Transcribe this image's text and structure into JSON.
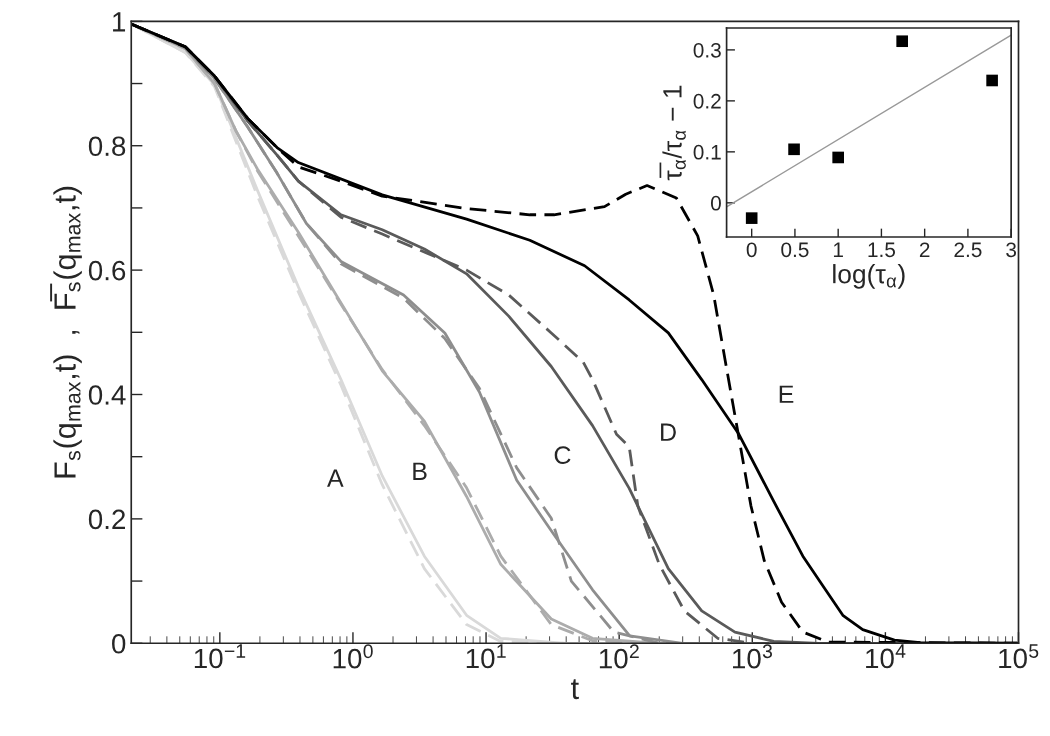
{
  "chart_data": [
    {
      "type": "line",
      "xlabel": "t",
      "ylabel": "F$_{s}$(q$_{max}$,t)  ,  F̅$_{s}$(q$_{max}$,t)",
      "log": "x",
      "xlim": [
        0.0216,
        100000
      ],
      "xticks": [
        {
          "value": 0.1,
          "label": "10$^{−1}$"
        },
        {
          "value": 1,
          "label": "10$^{0}$"
        },
        {
          "value": 10,
          "label": "10$^{1}$"
        },
        {
          "value": 100,
          "label": "10$^{2}$"
        },
        {
          "value": 1000,
          "label": "10$^{3}$"
        },
        {
          "value": 10000,
          "label": "10$^{4}$"
        },
        {
          "value": 100000,
          "label": "10$^{5}$"
        }
      ],
      "ylim": [
        0,
        1
      ],
      "yticks": [
        0,
        {
          "value": 0.1,
          "label": null
        },
        0.2,
        {
          "value": 0.3,
          "label": null
        },
        0.4,
        {
          "value": 0.5,
          "label": null
        },
        0.6,
        {
          "value": 0.7,
          "label": null
        },
        0.8,
        {
          "value": 0.9,
          "label": null
        },
        1
      ],
      "series": [
        {
          "color": "#d9d9d9",
          "line_style": "solid",
          "x": [
            0.022,
            0.055,
            0.0912,
            0.191,
            0.389,
            0.813,
            1.66,
            3.44,
            7.14,
            12.9,
            40,
            100000
          ],
          "values": [
            0.995,
            0.95,
            0.898,
            0.729,
            0.573,
            0.424,
            0.269,
            0.14,
            0.045,
            0.008,
            0,
            0
          ]
        },
        {
          "color": "#d9d9d9",
          "line_style": "dashed",
          "x": [
            0.022,
            0.055,
            0.0912,
            0.191,
            0.389,
            0.813,
            1.66,
            3.44,
            7.14,
            12.9,
            40,
            100000
          ],
          "values": [
            0.995,
            0.95,
            0.895,
            0.72,
            0.565,
            0.415,
            0.255,
            0.12,
            0.03,
            0.003,
            0,
            0
          ]
        },
        {
          "color": "#acacac",
          "line_style": "solid",
          "x": [
            0.022,
            0.055,
            0.0912,
            0.132,
            0.191,
            0.389,
            0.813,
            1.66,
            3.44,
            7.14,
            12.9,
            30.9,
            63.1,
            200,
            100000
          ],
          "values": [
            0.995,
            0.956,
            0.9,
            0.824,
            0.763,
            0.661,
            0.547,
            0.438,
            0.357,
            0.236,
            0.127,
            0.039,
            0.008,
            0,
            0
          ]
        },
        {
          "color": "#acacac",
          "line_style": "dashed",
          "x": [
            0.022,
            0.055,
            0.0912,
            0.132,
            0.191,
            0.389,
            0.813,
            1.66,
            3.44,
            7.14,
            12.9,
            30.9,
            63.1,
            200,
            100000
          ],
          "values": [
            0.995,
            0.956,
            0.9,
            0.824,
            0.76,
            0.655,
            0.545,
            0.44,
            0.35,
            0.25,
            0.14,
            0.03,
            0.004,
            0,
            0
          ]
        },
        {
          "color": "#8e8e8e",
          "line_style": "solid",
          "x": [
            0.022,
            0.055,
            0.0912,
            0.162,
            0.269,
            0.447,
            0.813,
            2.4,
            4.9,
            8.91,
            17,
            30.9,
            63.1,
            120,
            300,
            100000
          ],
          "values": [
            0.995,
            0.958,
            0.908,
            0.83,
            0.756,
            0.675,
            0.614,
            0.56,
            0.499,
            0.404,
            0.262,
            0.181,
            0.086,
            0.012,
            0,
            0
          ]
        },
        {
          "color": "#8e8e8e",
          "line_style": "dashed",
          "x": [
            0.022,
            0.055,
            0.0912,
            0.162,
            0.269,
            0.447,
            0.813,
            2.4,
            4.9,
            8.91,
            17,
            30.9,
            43.7,
            91.2,
            200,
            100000
          ],
          "values": [
            0.995,
            0.958,
            0.908,
            0.83,
            0.756,
            0.675,
            0.61,
            0.555,
            0.49,
            0.41,
            0.282,
            0.201,
            0.1,
            0.018,
            0,
            0
          ]
        },
        {
          "color": "#5a5a5a",
          "line_style": "solid",
          "x": [
            0.022,
            0.055,
            0.0912,
            0.162,
            0.269,
            0.389,
            0.813,
            1.66,
            3.44,
            7.14,
            14.8,
            30.9,
            63.1,
            119,
            234,
            417,
            741,
            1450,
            3160,
            100000
          ],
          "values": [
            0.995,
            0.959,
            0.912,
            0.84,
            0.785,
            0.743,
            0.689,
            0.665,
            0.634,
            0.594,
            0.526,
            0.445,
            0.35,
            0.249,
            0.12,
            0.052,
            0.018,
            0.003,
            0,
            0
          ]
        },
        {
          "color": "#5a5a5a",
          "line_style": "dashed",
          "x": [
            0.022,
            0.055,
            0.0912,
            0.162,
            0.269,
            0.389,
            0.813,
            1.66,
            7.14,
            14.8,
            30.9,
            53.7,
            63.1,
            95.5,
            119,
            138,
            200,
            309,
            550,
            1000,
            100000
          ],
          "values": [
            0.995,
            0.959,
            0.912,
            0.84,
            0.785,
            0.743,
            0.685,
            0.658,
            0.6,
            0.56,
            0.499,
            0.452,
            0.424,
            0.336,
            0.316,
            0.221,
            0.127,
            0.052,
            0.008,
            0,
            0
          ]
        },
        {
          "color": "#000000",
          "line_style": "solid",
          "x": [
            0.022,
            0.055,
            0.0912,
            0.162,
            0.269,
            0.389,
            1.66,
            7.14,
            21.3,
            55,
            119,
            234,
            417,
            794,
            1450,
            2400,
            3550,
            4790,
            6760,
            11700,
            18200,
            100000
          ],
          "values": [
            0.995,
            0.959,
            0.912,
            0.844,
            0.797,
            0.773,
            0.721,
            0.682,
            0.648,
            0.607,
            0.552,
            0.499,
            0.424,
            0.336,
            0.228,
            0.14,
            0.086,
            0.045,
            0.022,
            0.005,
            0.001,
            0
          ]
        },
        {
          "color": "#000000",
          "line_style": "dashed",
          "x": [
            0.022,
            0.055,
            0.0912,
            0.162,
            0.269,
            0.389,
            0.813,
            1.66,
            7.14,
            21.3,
            32.4,
            77.6,
            112,
            162,
            269,
            389,
            513,
            646,
            794,
            977,
            1230,
            1660,
            2400,
            3720,
            100000
          ],
          "values": [
            0.995,
            0.959,
            0.912,
            0.844,
            0.797,
            0.766,
            0.743,
            0.719,
            0.699,
            0.689,
            0.689,
            0.702,
            0.722,
            0.736,
            0.716,
            0.655,
            0.56,
            0.438,
            0.33,
            0.221,
            0.133,
            0.066,
            0.018,
            0.002,
            0
          ]
        }
      ],
      "annotations": [
        "A",
        "B",
        "C",
        "D",
        "E"
      ]
    },
    {
      "type": "scatter",
      "xlabel": "log(τ$_{α}$)",
      "ylabel": "τ̅$_{α}$/τ$_{α}$ − 1",
      "xlim": [
        -0.29,
        3
      ],
      "xticks": [
        0,
        0.5,
        1,
        1.5,
        2,
        2.5,
        3
      ],
      "ylim": [
        -0.067,
        0.343
      ],
      "yticks": [
        0,
        0.1,
        0.2,
        0.3
      ],
      "series": [
        {
          "type": "scatter",
          "marker": "square",
          "color": "#000000",
          "x": [
            0,
            0.49,
            1.0,
            1.74,
            2.78
          ],
          "values": [
            -0.03,
            0.105,
            0.089,
            0.317,
            0.24
          ]
        },
        {
          "type": "line",
          "color": "#999999",
          "x": [
            -0.29,
            3
          ],
          "values": [
            -0.008,
            0.329
          ]
        }
      ]
    }
  ]
}
